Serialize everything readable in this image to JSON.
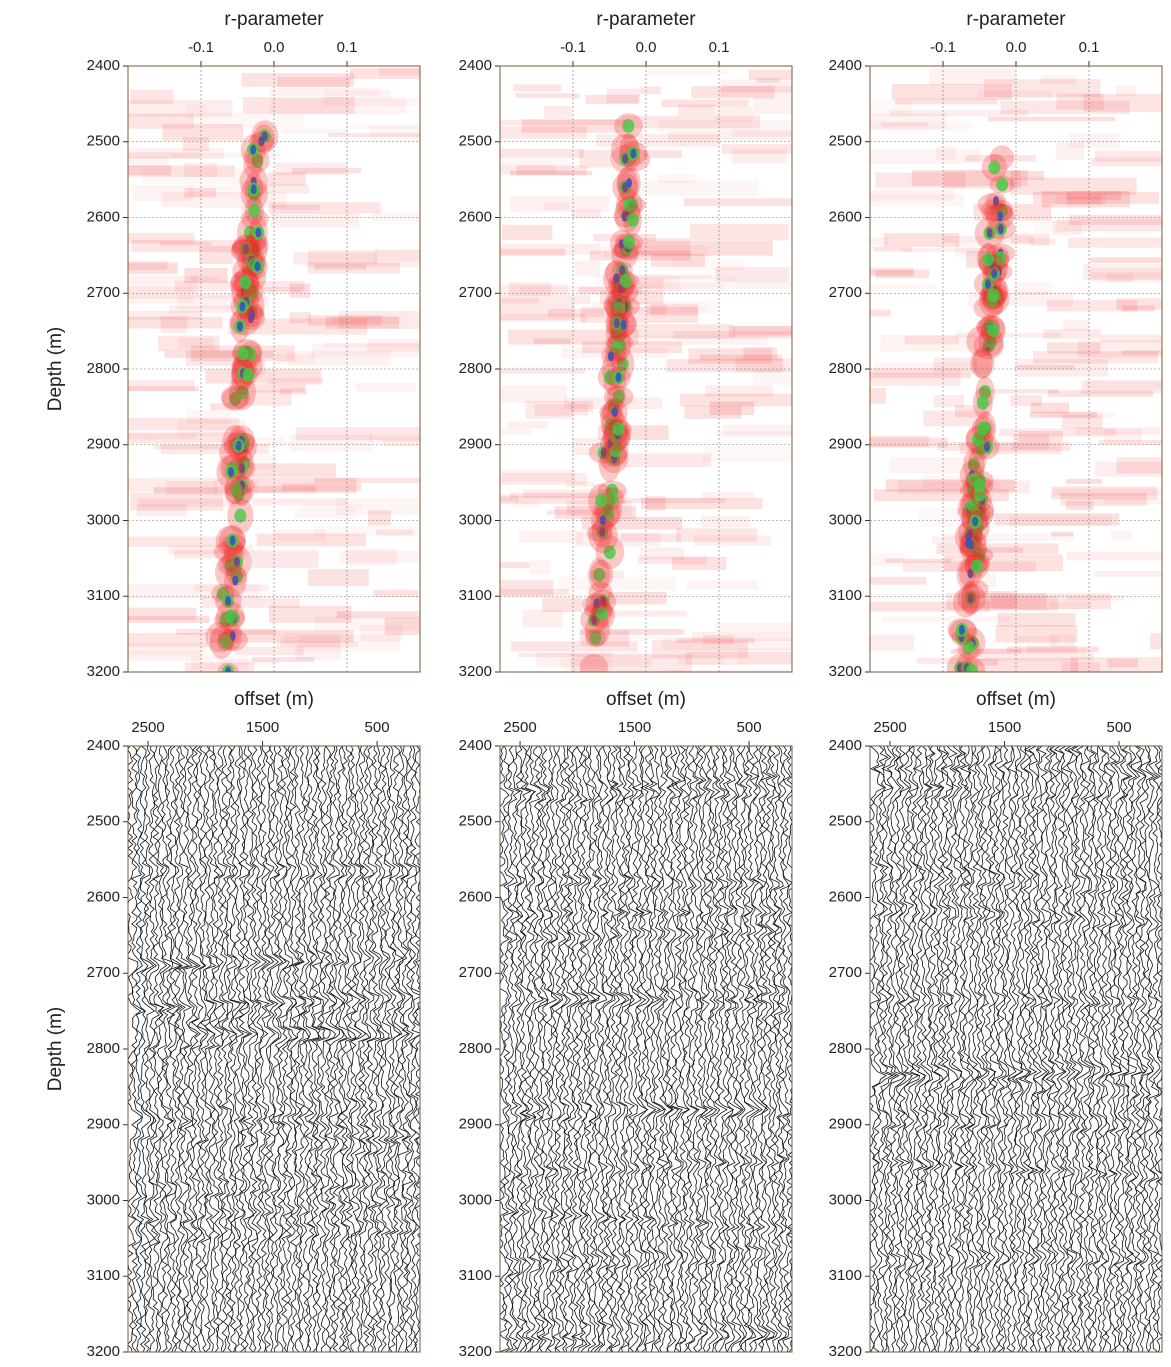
{
  "chart_data": [
    {
      "type": "semblance",
      "title": "r-parameter",
      "ylabel": "Depth (m)",
      "xlim": [
        -0.2,
        0.2
      ],
      "xticks": [
        -0.1,
        {
          "value": 0,
          "label": "0.0"
        },
        0.1
      ],
      "ylim": [
        2400,
        3200
      ],
      "yticks": [
        2400,
        2500,
        2600,
        2700,
        2800,
        2900,
        3000,
        3100,
        3200
      ],
      "y_inverted": true,
      "grid": true
    },
    {
      "type": "semblance",
      "title": "r-parameter",
      "xlim": [
        -0.2,
        0.2
      ],
      "xticks": [
        -0.1,
        {
          "value": 0,
          "label": "0.0"
        },
        0.1
      ],
      "ylim": [
        2400,
        3200
      ],
      "yticks": [
        2400,
        2500,
        2600,
        2700,
        2800,
        2900,
        3000,
        3100,
        3200
      ],
      "y_inverted": true,
      "grid": true
    },
    {
      "type": "semblance",
      "title": "r-parameter",
      "xlim": [
        -0.2,
        0.2
      ],
      "xticks": [
        -0.1,
        {
          "value": 0,
          "label": "0.0"
        },
        0.1
      ],
      "ylim": [
        2400,
        3200
      ],
      "yticks": [
        2400,
        2500,
        2600,
        2700,
        2800,
        2900,
        3000,
        3100,
        3200
      ],
      "y_inverted": true,
      "grid": true
    },
    {
      "type": "gather",
      "title": "offset (m)",
      "ylabel": "Depth (m)",
      "xlim": [
        2675,
        125
      ],
      "xticks": [
        2500,
        1500,
        500
      ],
      "ylim": [
        2400,
        3200
      ],
      "yticks": [
        2400,
        2500,
        2600,
        2700,
        2800,
        2900,
        3000,
        3100,
        3200
      ],
      "y_inverted": true,
      "grid": false
    },
    {
      "type": "gather",
      "title": "offset (m)",
      "xlim": [
        2675,
        125
      ],
      "xticks": [
        2500,
        1500,
        500
      ],
      "ylim": [
        2400,
        3200
      ],
      "yticks": [
        2400,
        2500,
        2600,
        2700,
        2800,
        2900,
        3000,
        3100,
        3200
      ],
      "y_inverted": true,
      "grid": false
    },
    {
      "type": "gather",
      "title": "offset (m)",
      "xlim": [
        2675,
        125
      ],
      "xticks": [
        2500,
        1500,
        500
      ],
      "ylim": [
        2400,
        3200
      ],
      "yticks": [
        2400,
        2500,
        2600,
        2700,
        2800,
        2900,
        3000,
        3100,
        3200
      ],
      "y_inverted": true,
      "grid": false
    }
  ]
}
